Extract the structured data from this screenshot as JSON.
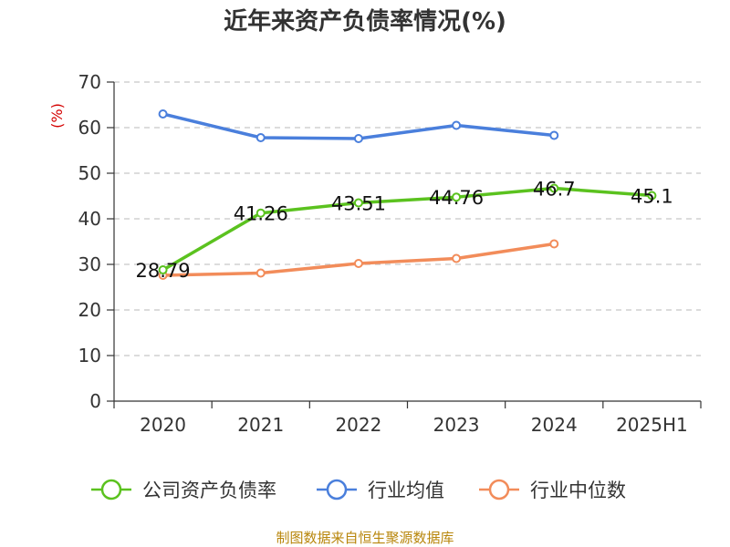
{
  "chart_data": {
    "type": "line",
    "title": "近年来资产负债率情况(%)",
    "ylabel": "(%)",
    "xlabel": "",
    "categories": [
      "2020",
      "2021",
      "2022",
      "2023",
      "2024",
      "2025H1"
    ],
    "ylim": [
      0,
      70
    ],
    "yticks": [
      0,
      10,
      20,
      30,
      40,
      50,
      60,
      70
    ],
    "grid": true,
    "legend_position": "bottom",
    "series": [
      {
        "name": "公司资产负债率",
        "color": "#5bc21f",
        "values": [
          28.79,
          41.26,
          43.51,
          44.76,
          46.7,
          45.1
        ],
        "labels": [
          "28.79",
          "41.26",
          "43.51",
          "44.76",
          "46.7",
          "45.1"
        ]
      },
      {
        "name": "行业均值",
        "color": "#4a7fdc",
        "values": [
          63.0,
          57.8,
          57.6,
          60.5,
          58.3,
          null
        ]
      },
      {
        "name": "行业中位数",
        "color": "#f28c5a",
        "values": [
          27.6,
          28.1,
          30.2,
          31.3,
          34.5,
          null
        ]
      }
    ],
    "source": "制图数据来自恒生聚源数据库"
  }
}
